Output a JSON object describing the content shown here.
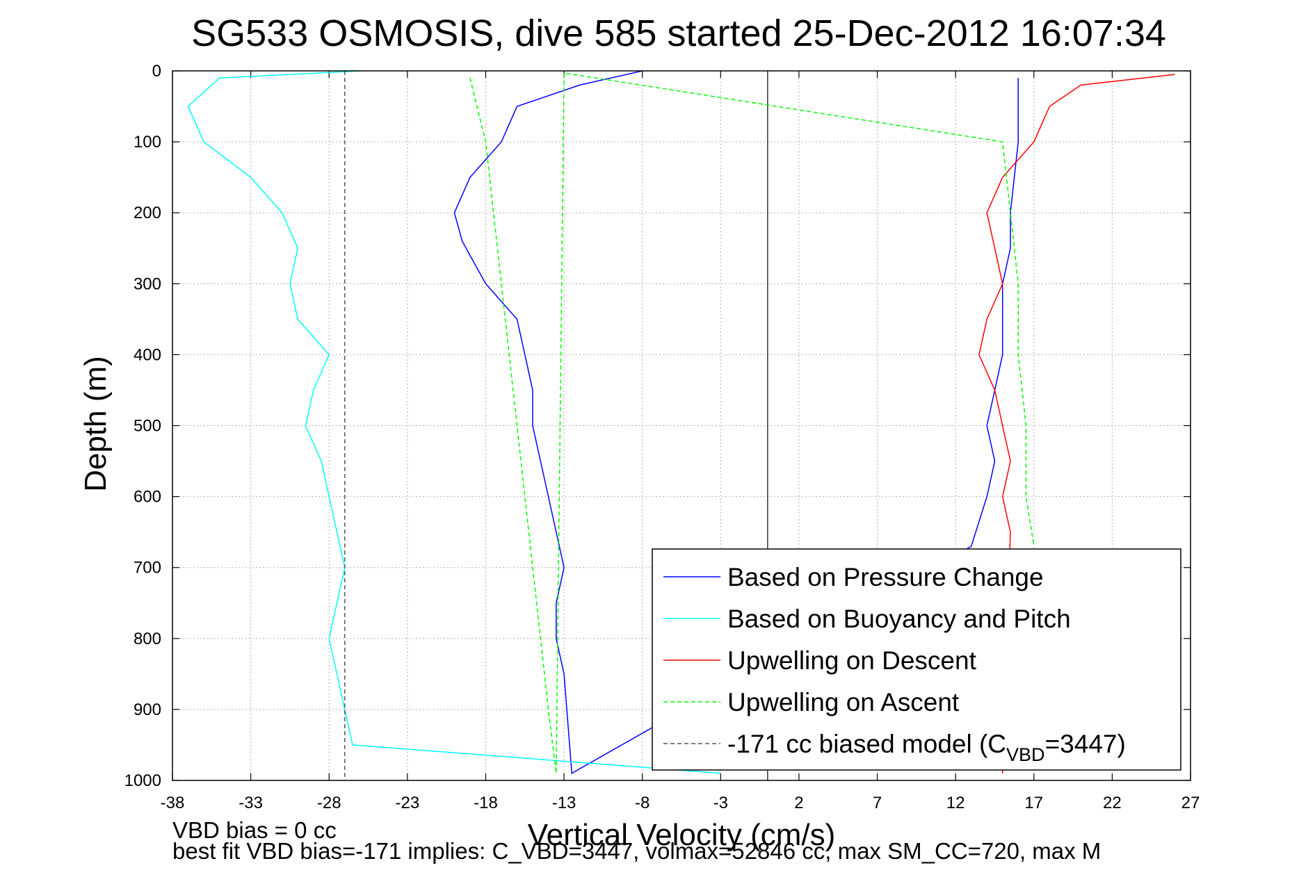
{
  "chart_data": {
    "type": "line",
    "title": "SG533 OSMOSIS, dive 585 started 25-Dec-2012 16:07:34",
    "xlabel": "Vertical Velocity (cm/s)",
    "ylabel": "Depth (m)",
    "xlim": [
      -38,
      27
    ],
    "ylim": [
      0,
      1000
    ],
    "y_reversed": true,
    "grid": true,
    "legend_position": "bottom-right",
    "xticks": [
      -38,
      -33,
      -28,
      -23,
      -18,
      -13,
      -8,
      -3,
      2,
      7,
      12,
      17,
      22,
      27
    ],
    "yticks": [
      0,
      100,
      200,
      300,
      400,
      500,
      600,
      700,
      800,
      900,
      1000
    ],
    "series": [
      {
        "name": "Based on Pressure Change",
        "color": "#0000ff",
        "style": "solid",
        "x": [
          -8,
          -12,
          -16,
          -17,
          -19,
          -20,
          -19.5,
          -19,
          -18,
          -16,
          -15.5,
          -15,
          -15,
          -14.5,
          -14,
          -13.5,
          -13,
          -13.5,
          -13.5,
          -13,
          -12.5,
          13,
          14,
          14.5,
          14,
          14.5,
          15,
          15,
          15,
          15.5,
          15.5,
          16,
          16
        ],
        "y": [
          0,
          20,
          50,
          100,
          150,
          200,
          240,
          260,
          300,
          350,
          400,
          450,
          500,
          550,
          600,
          650,
          700,
          750,
          800,
          850,
          990,
          670,
          600,
          550,
          500,
          450,
          400,
          350,
          300,
          250,
          200,
          100,
          10
        ]
      },
      {
        "name": "Based on Buoyancy and Pitch",
        "color": "#00ffff",
        "style": "solid",
        "x": [
          -26,
          -35,
          -37,
          -36,
          -33,
          -31,
          -30,
          -30.5,
          -30,
          -28,
          -29,
          -29.5,
          -28.5,
          -28,
          -27,
          -28,
          -26.5,
          -3
        ],
        "y": [
          0,
          10,
          50,
          100,
          150,
          200,
          250,
          300,
          350,
          400,
          450,
          500,
          550,
          600,
          700,
          800,
          950,
          990
        ]
      },
      {
        "name": "Upwelling on Descent",
        "color": "#ff0000",
        "style": "solid",
        "x": [
          26,
          20,
          18,
          17,
          15,
          14,
          14.5,
          15,
          14,
          13.5,
          14.5,
          15,
          15.5,
          15,
          15.5,
          15
        ],
        "y": [
          5,
          20,
          50,
          100,
          150,
          200,
          250,
          300,
          350,
          400,
          450,
          500,
          550,
          600,
          650,
          990
        ]
      },
      {
        "name": "Upwelling on Ascent",
        "color": "#00ff00",
        "style": "dashed",
        "x": [
          -19,
          -18,
          -17.5,
          -17,
          -16.5,
          -16,
          -15.5,
          -15,
          -14.5,
          -14,
          -13.5,
          -13,
          15,
          15.5,
          16,
          16,
          16.5,
          16.5,
          17
        ],
        "y": [
          10,
          100,
          200,
          300,
          400,
          500,
          600,
          700,
          800,
          900,
          990,
          3,
          100,
          200,
          300,
          400,
          500,
          600,
          670
        ]
      },
      {
        "name": "-171 cc biased model (C",
        "name_sub": "VBD",
        "name_suffix": "=3447)",
        "color": "#555555",
        "style": "dashed",
        "x": [
          -27,
          -27
        ],
        "y": [
          0,
          1000
        ]
      }
    ],
    "zero_line": {
      "x": 0
    },
    "annotations": [
      "VBD bias = 0 cc",
      "best fit VBD bias=-171 implies: C_VBD=3447, volmax=52846 cc, max SM_CC=720, max M"
    ]
  }
}
